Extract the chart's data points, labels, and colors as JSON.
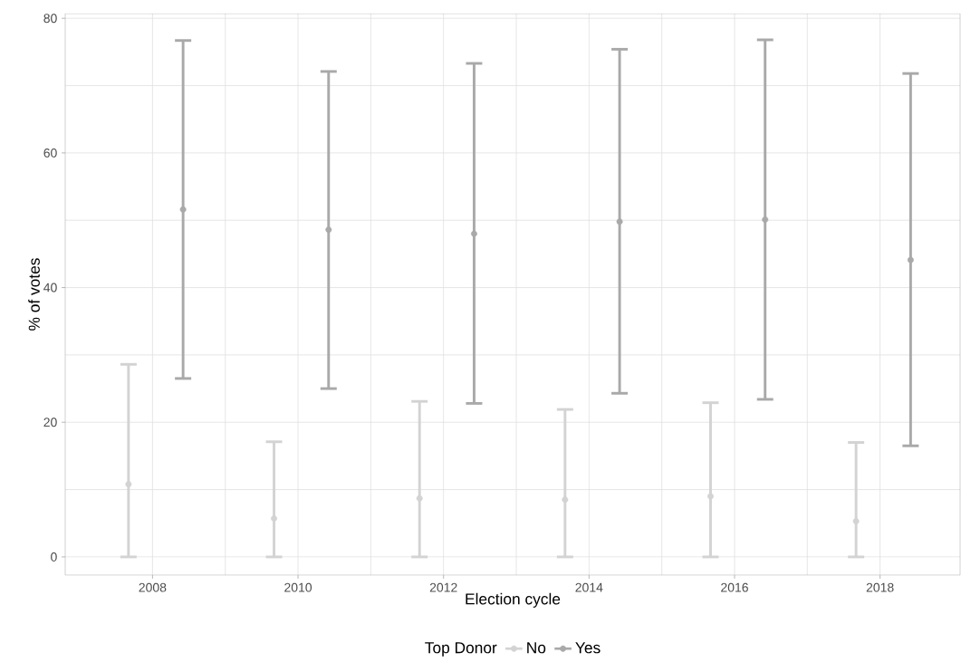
{
  "chart_data": {
    "type": "scatter",
    "xlabel": "Election cycle",
    "ylabel": "% of votes",
    "legend_title": "Top Donor",
    "xlim": [
      2006.8,
      2019.1
    ],
    "ylim": [
      -2.7,
      80.7
    ],
    "xticks": [
      2008,
      2010,
      2012,
      2014,
      2016,
      2018
    ],
    "yticks": [
      0,
      20,
      40,
      60,
      80
    ],
    "grid": true,
    "legend": "bottom",
    "marker": "circle",
    "series": [
      {
        "name": "No",
        "color": "#d3d3d3",
        "x": [
          2007.67,
          2009.67,
          2011.67,
          2013.67,
          2015.67,
          2017.67
        ],
        "values": [
          10.8,
          5.7,
          8.7,
          8.5,
          9.0,
          5.3
        ],
        "errors": [
          [
            0,
            28.6
          ],
          [
            0,
            17.1
          ],
          [
            0,
            23.1
          ],
          [
            0,
            21.9
          ],
          [
            0,
            22.9
          ],
          [
            0,
            17.0
          ]
        ]
      },
      {
        "name": "Yes",
        "color": "#a9a9a9",
        "x": [
          2008.42,
          2010.42,
          2012.42,
          2014.42,
          2016.42,
          2018.42
        ],
        "values": [
          51.6,
          48.6,
          48.0,
          49.8,
          50.1,
          44.1
        ],
        "errors": [
          [
            26.5,
            76.7
          ],
          [
            25.0,
            72.1
          ],
          [
            22.8,
            73.3
          ],
          [
            24.3,
            75.4
          ],
          [
            23.4,
            76.8
          ],
          [
            16.5,
            71.8
          ]
        ]
      }
    ]
  }
}
